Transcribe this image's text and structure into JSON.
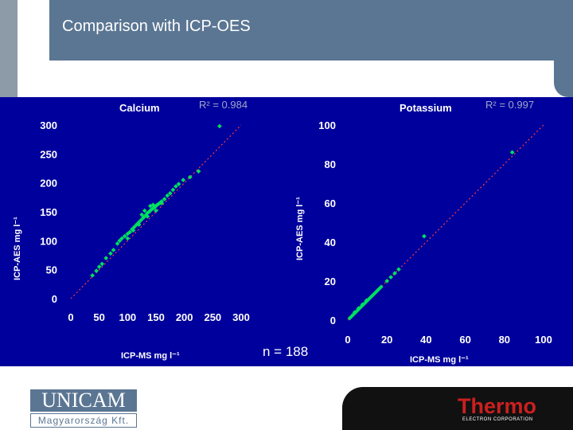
{
  "slide": {
    "title": "Comparison with ICP-OES",
    "n_label": "n = 188"
  },
  "colors": {
    "header": "#5b7693",
    "plot_background": "#00009c",
    "points": "#00e060",
    "fit_line": "#ff3b3b"
  },
  "logos": {
    "unicam_top": "UNICAM",
    "unicam_bottom": "Magyarország Kft.",
    "thermo_name": "Thermo",
    "thermo_sub": "ELECTRON CORPORATION"
  },
  "chart_data": [
    {
      "type": "scatter",
      "title": "Calcium",
      "r_squared": "R² = 0.984",
      "xlabel": "ICP-MS mg l⁻¹",
      "ylabel": "ICP-AES mg l⁻¹",
      "xlim": [
        0,
        300
      ],
      "ylim": [
        0,
        300
      ],
      "xticks": [
        0,
        50,
        100,
        150,
        200,
        250,
        300
      ],
      "yticks": [
        0,
        50,
        100,
        150,
        200,
        250,
        300
      ],
      "fit_line": [
        [
          0,
          0
        ],
        [
          300,
          300
        ]
      ],
      "points": [
        [
          38,
          40
        ],
        [
          45,
          48
        ],
        [
          50,
          55
        ],
        [
          55,
          60
        ],
        [
          62,
          70
        ],
        [
          70,
          78
        ],
        [
          75,
          84
        ],
        [
          82,
          95
        ],
        [
          86,
          100
        ],
        [
          90,
          104
        ],
        [
          95,
          108
        ],
        [
          100,
          112
        ],
        [
          104,
          115
        ],
        [
          108,
          120
        ],
        [
          112,
          124
        ],
        [
          116,
          128
        ],
        [
          120,
          132
        ],
        [
          124,
          136
        ],
        [
          128,
          140
        ],
        [
          132,
          144
        ],
        [
          135,
          148
        ],
        [
          138,
          150
        ],
        [
          140,
          152
        ],
        [
          142,
          154
        ],
        [
          145,
          156
        ],
        [
          148,
          158
        ],
        [
          150,
          160
        ],
        [
          152,
          162
        ],
        [
          155,
          164
        ],
        [
          158,
          166
        ],
        [
          160,
          168
        ],
        [
          165,
          172
        ],
        [
          170,
          178
        ],
        [
          175,
          182
        ],
        [
          180,
          188
        ],
        [
          185,
          194
        ],
        [
          190,
          198
        ],
        [
          198,
          205
        ],
        [
          210,
          210
        ],
        [
          225,
          220
        ],
        [
          262,
          298
        ],
        [
          130,
          152
        ],
        [
          140,
          160
        ],
        [
          150,
          152
        ],
        [
          110,
          118
        ],
        [
          100,
          104
        ],
        [
          125,
          145
        ],
        [
          145,
          162
        ],
        [
          160,
          165
        ],
        [
          135,
          142
        ],
        [
          120,
          128
        ]
      ]
    },
    {
      "type": "scatter",
      "title": "Potassium",
      "r_squared": "R² = 0.997",
      "xlabel": "ICP-MS mg l⁻¹",
      "ylabel": "ICP-AES mg l⁻¹",
      "xlim": [
        0,
        100
      ],
      "ylim": [
        0,
        100
      ],
      "xticks": [
        0,
        20,
        40,
        60,
        80,
        100
      ],
      "yticks": [
        0,
        20,
        40,
        60,
        80,
        100
      ],
      "fit_line": [
        [
          0,
          0
        ],
        [
          100,
          100
        ]
      ],
      "points": [
        [
          1,
          1
        ],
        [
          2,
          2
        ],
        [
          3,
          3
        ],
        [
          3.5,
          4
        ],
        [
          4,
          4
        ],
        [
          5,
          5
        ],
        [
          5.5,
          6
        ],
        [
          6,
          6
        ],
        [
          7,
          7
        ],
        [
          7.5,
          8
        ],
        [
          8,
          8
        ],
        [
          9,
          9
        ],
        [
          9.5,
          10
        ],
        [
          10,
          10
        ],
        [
          11,
          11
        ],
        [
          12,
          12
        ],
        [
          13,
          13
        ],
        [
          14,
          14
        ],
        [
          15,
          15
        ],
        [
          16,
          16
        ],
        [
          17,
          17
        ],
        [
          20,
          20
        ],
        [
          22,
          22
        ],
        [
          24,
          24
        ],
        [
          26,
          26
        ],
        [
          39,
          43
        ],
        [
          84,
          86
        ]
      ]
    }
  ]
}
